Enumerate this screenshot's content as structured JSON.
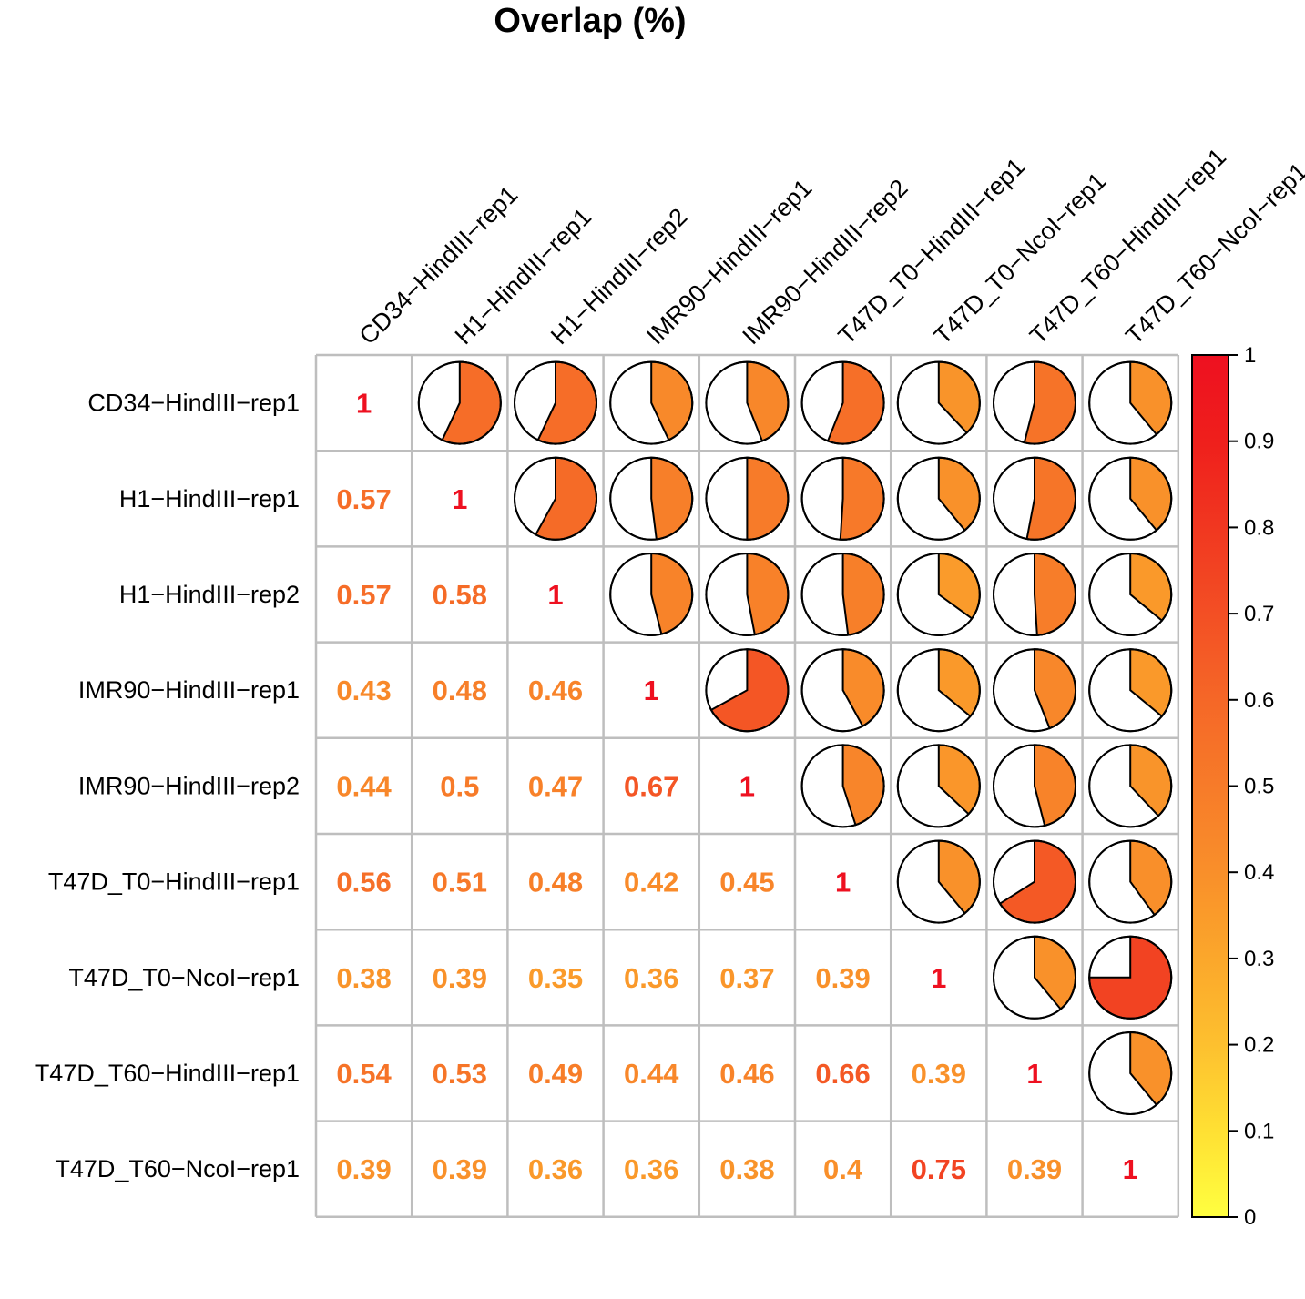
{
  "chart_data": {
    "type": "heatmap",
    "title": "Overlap (%)",
    "labels": [
      "CD34−HindIII−rep1",
      "H1−HindIII−rep1",
      "H1−HindIII−rep2",
      "IMR90−HindIII−rep1",
      "IMR90−HindIII−rep2",
      "T47D_T0−HindIII−rep1",
      "T47D_T0−NcoI−rep1",
      "T47D_T60−HindIII−rep1",
      "T47D_T60−NcoI−rep1"
    ],
    "lower_display": "number",
    "upper_display": "pie",
    "values": [
      [
        1,
        0.57,
        0.57,
        0.43,
        0.44,
        0.56,
        0.38,
        0.54,
        0.39
      ],
      [
        0.57,
        1,
        0.58,
        0.48,
        0.5,
        0.51,
        0.39,
        0.53,
        0.39
      ],
      [
        0.57,
        0.58,
        1,
        0.46,
        0.47,
        0.48,
        0.35,
        0.49,
        0.36
      ],
      [
        0.43,
        0.48,
        0.46,
        1,
        0.67,
        0.42,
        0.36,
        0.44,
        0.36
      ],
      [
        0.44,
        0.5,
        0.47,
        0.67,
        1,
        0.45,
        0.37,
        0.46,
        0.38
      ],
      [
        0.56,
        0.51,
        0.48,
        0.42,
        0.45,
        1,
        0.39,
        0.66,
        0.4
      ],
      [
        0.38,
        0.39,
        0.35,
        0.36,
        0.37,
        0.39,
        1,
        0.39,
        0.75
      ],
      [
        0.54,
        0.53,
        0.49,
        0.44,
        0.46,
        0.66,
        0.39,
        1,
        0.39
      ],
      [
        0.39,
        0.39,
        0.36,
        0.36,
        0.38,
        0.4,
        0.75,
        0.39,
        1
      ]
    ],
    "colorbar": {
      "range": [
        0,
        1
      ],
      "ticks": [
        "0",
        "0.1",
        "0.2",
        "0.3",
        "0.4",
        "0.5",
        "0.6",
        "0.7",
        "0.8",
        "0.9",
        "1"
      ],
      "colors": [
        "#ffff40",
        "#ffe033",
        "#fdc02f",
        "#fba72b",
        "#f98f2a",
        "#f77b29",
        "#f56727",
        "#f34f24",
        "#f13720",
        "#ef1f1c",
        "#ee1020"
      ]
    },
    "grid_color": "#bebebe"
  }
}
